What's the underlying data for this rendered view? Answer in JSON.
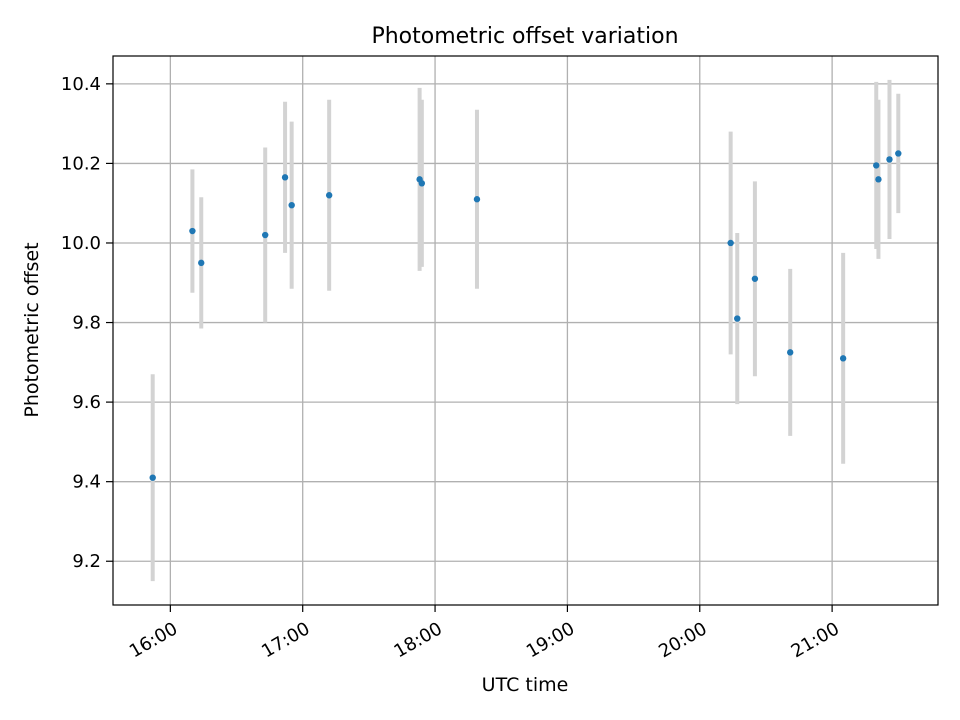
{
  "chart_data": {
    "type": "scatter",
    "title": "Photometric offset variation",
    "xlabel": "UTC time",
    "ylabel": "Photometric offset",
    "x_ticks": [
      "16:00",
      "17:00",
      "18:00",
      "19:00",
      "20:00",
      "21:00"
    ],
    "y_ticks": [
      "9.2",
      "9.4",
      "9.6",
      "9.8",
      "10.0",
      "10.2",
      "10.4"
    ],
    "xlim": [
      "15:34",
      "21:48"
    ],
    "ylim": [
      9.09,
      10.47
    ],
    "grid": true,
    "error_bar_color": "#d3d3d3",
    "marker_color": "#1f77b4",
    "points": [
      {
        "x": "15:52",
        "y": 9.41,
        "err": 0.26
      },
      {
        "x": "16:10",
        "y": 10.03,
        "err": 0.155
      },
      {
        "x": "16:14",
        "y": 9.95,
        "err": 0.165
      },
      {
        "x": "16:43",
        "y": 10.02,
        "err": 0.22
      },
      {
        "x": "16:52",
        "y": 10.165,
        "err": 0.19
      },
      {
        "x": "16:55",
        "y": 10.095,
        "err": 0.21
      },
      {
        "x": "17:12",
        "y": 10.12,
        "err": 0.24
      },
      {
        "x": "17:53",
        "y": 10.16,
        "err": 0.23
      },
      {
        "x": "17:54",
        "y": 10.15,
        "err": 0.21
      },
      {
        "x": "18:19",
        "y": 10.11,
        "err": 0.225
      },
      {
        "x": "20:14",
        "y": 10.0,
        "err": 0.28
      },
      {
        "x": "20:17",
        "y": 9.81,
        "err": 0.215
      },
      {
        "x": "20:25",
        "y": 9.91,
        "err": 0.245
      },
      {
        "x": "20:41",
        "y": 9.725,
        "err": 0.21
      },
      {
        "x": "21:05",
        "y": 9.71,
        "err": 0.265
      },
      {
        "x": "21:20",
        "y": 10.195,
        "err": 0.21
      },
      {
        "x": "21:21",
        "y": 10.16,
        "err": 0.2
      },
      {
        "x": "21:26",
        "y": 10.21,
        "err": 0.2
      },
      {
        "x": "21:30",
        "y": 10.225,
        "err": 0.15
      }
    ]
  }
}
